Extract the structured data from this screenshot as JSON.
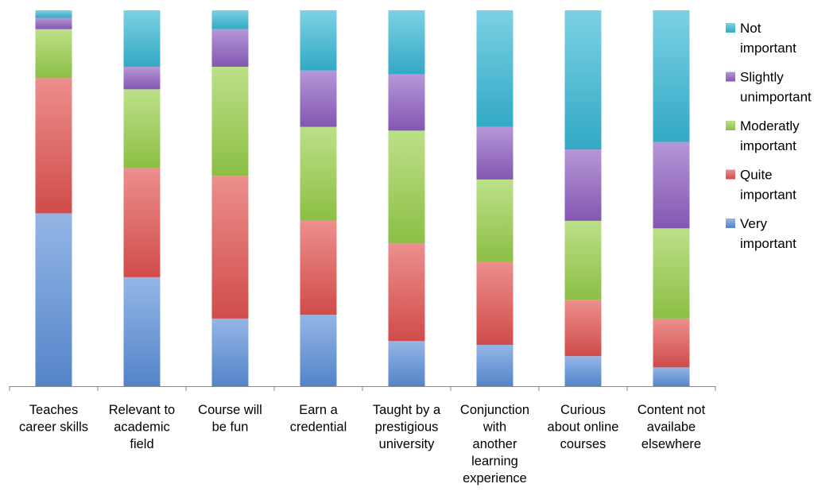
{
  "chart_data": {
    "type": "bar",
    "stacked": true,
    "normalized": true,
    "title": "",
    "xlabel": "",
    "ylabel": "",
    "ylim": [
      0,
      1
    ],
    "grid": false,
    "legend_position": "right",
    "categories": [
      "Teaches career skills",
      "Relevant to academic field",
      "Course will be fun",
      "Earn a credential",
      "Taught by a prestigious university",
      "Conjunction with another learning experience",
      "Curious about online courses",
      "Content not availabe elsewhere"
    ],
    "category_label_lines": [
      [
        "Teaches",
        "career skills"
      ],
      [
        "Relevant to",
        "academic",
        "field"
      ],
      [
        "Course will",
        "be fun"
      ],
      [
        "Earn a",
        "credential"
      ],
      [
        "Taught by a",
        "prestigious",
        "university"
      ],
      [
        "Conjunction",
        "with",
        "another",
        "learning",
        "experience"
      ],
      [
        "Curious",
        "about online",
        "courses"
      ],
      [
        "Content not",
        "availabe",
        "elsewhere"
      ]
    ],
    "series": [
      {
        "name": "Very important",
        "legend_lines": [
          "Very",
          "important"
        ],
        "color": "#5b8fd9",
        "values": [
          0.46,
          0.29,
          0.18,
          0.19,
          0.12,
          0.11,
          0.08,
          0.05
        ]
      },
      {
        "name": "Quite important",
        "legend_lines": [
          "Quite",
          "important"
        ],
        "color": "#e2534f",
        "values": [
          0.36,
          0.29,
          0.38,
          0.25,
          0.26,
          0.22,
          0.15,
          0.13
        ]
      },
      {
        "name": "Moderatly important",
        "legend_lines": [
          "Moderatly",
          "important"
        ],
        "color": "#98d04a",
        "values": [
          0.13,
          0.21,
          0.29,
          0.25,
          0.3,
          0.22,
          0.21,
          0.24
        ]
      },
      {
        "name": "Slightly unimportant",
        "legend_lines": [
          "Slightly",
          "unimportant"
        ],
        "color": "#8e5fc2",
        "values": [
          0.03,
          0.06,
          0.1,
          0.15,
          0.15,
          0.14,
          0.19,
          0.23
        ]
      },
      {
        "name": "Not important",
        "legend_lines": [
          "Not",
          "important"
        ],
        "color": "#36b8d6",
        "values": [
          0.02,
          0.15,
          0.05,
          0.16,
          0.17,
          0.31,
          0.37,
          0.35
        ]
      }
    ]
  }
}
